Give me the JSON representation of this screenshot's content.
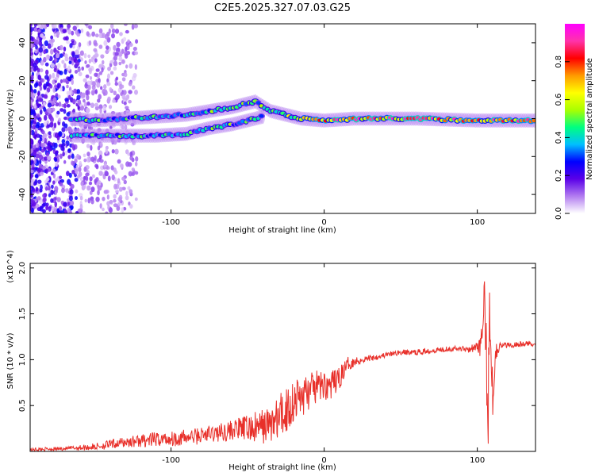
{
  "title": "C2E5.2025.327.07.03.G25",
  "colors": {
    "snr_line": "#e8302a",
    "axis": "#000000",
    "colorbar": [
      "#ffffff",
      "#b27cf0",
      "#5a00e8",
      "#0000ff",
      "#00bfff",
      "#00ff80",
      "#aaff00",
      "#ffff00",
      "#ff9900",
      "#ff0000",
      "#ff33aa",
      "#ff00ff"
    ]
  },
  "chart_data": [
    {
      "type": "heatmap",
      "title": "",
      "xlabel": "Height of straight line (km)",
      "ylabel": "Frequency (Hz)",
      "xlim": [
        -192,
        138
      ],
      "ylim": [
        -50,
        50
      ],
      "xticks": [
        -100,
        0,
        100
      ],
      "xtick_labels": [
        "-100",
        "0",
        "100"
      ],
      "yticks": [
        -40,
        -20,
        0,
        20,
        40
      ],
      "ytick_labels": [
        "-40",
        "-20",
        "0",
        "20",
        "40"
      ],
      "colorbar": {
        "label": "Normalized spectral amplitude",
        "range": [
          0,
          1
        ],
        "ticks": [
          0.0,
          0.2,
          0.4,
          0.6,
          0.8
        ],
        "tick_labels": [
          "0.0",
          "0.2",
          "0.4",
          "0.6",
          "0.8"
        ]
      },
      "ridges": [
        {
          "name": "upper",
          "points": [
            [
              -165,
              0
            ],
            [
              -150,
              -1
            ],
            [
              -130,
              0
            ],
            [
              -110,
              1
            ],
            [
              -90,
              2
            ],
            [
              -75,
              4
            ],
            [
              -60,
              6
            ],
            [
              -50,
              8
            ],
            [
              -45,
              9
            ],
            [
              -35,
              4
            ],
            [
              -25,
              2
            ],
            [
              -15,
              0
            ],
            [
              0,
              -1
            ],
            [
              20,
              0
            ],
            [
              60,
              0
            ],
            [
              100,
              -1
            ],
            [
              138,
              -1
            ]
          ]
        },
        {
          "name": "lower",
          "points": [
            [
              -165,
              -9
            ],
            [
              -150,
              -9
            ],
            [
              -130,
              -9
            ],
            [
              -110,
              -9
            ],
            [
              -90,
              -8
            ],
            [
              -75,
              -5
            ],
            [
              -60,
              -3
            ],
            [
              -50,
              -1
            ],
            [
              -40,
              1
            ]
          ]
        }
      ]
    },
    {
      "type": "line",
      "title": "",
      "xlabel": "Height of straight line (km)",
      "ylabel": "SNR (10 * v/v)",
      "y_multiplier": "(x10^4)",
      "xlim": [
        -192,
        138
      ],
      "ylim": [
        0,
        2.05
      ],
      "xticks": [
        -100,
        0,
        100
      ],
      "xtick_labels": [
        "-100",
        "0",
        "100"
      ],
      "yticks": [
        0.5,
        1.0,
        1.5,
        2.0
      ],
      "ytick_labels": [
        "0.5",
        "1.0",
        "1.5",
        "2.0"
      ],
      "series": [
        {
          "name": "SNR",
          "x": [
            -192,
            -170,
            -150,
            -130,
            -110,
            -90,
            -70,
            -55,
            -45,
            -35,
            -30,
            -25,
            -20,
            -15,
            -10,
            -5,
            0,
            5,
            10,
            15,
            20,
            25,
            30,
            40,
            50,
            60,
            70,
            80,
            90,
            95,
            100,
            103,
            105,
            107,
            108,
            110,
            112,
            115,
            120,
            130,
            138
          ],
          "values": [
            0.02,
            0.03,
            0.05,
            0.1,
            0.13,
            0.15,
            0.2,
            0.25,
            0.25,
            0.3,
            0.35,
            0.45,
            0.55,
            0.6,
            0.65,
            0.7,
            0.72,
            0.72,
            0.8,
            0.95,
            0.98,
            1.0,
            1.02,
            1.05,
            1.08,
            1.08,
            1.1,
            1.12,
            1.12,
            1.12,
            1.14,
            1.2,
            1.6,
            0.3,
            1.7,
            0.6,
            1.1,
            1.15,
            1.16,
            1.17,
            1.18
          ],
          "noise": [
            0.02,
            0.02,
            0.04,
            0.06,
            0.08,
            0.09,
            0.1,
            0.12,
            0.18,
            0.2,
            0.25,
            0.3,
            0.25,
            0.25,
            0.2,
            0.18,
            0.16,
            0.16,
            0.12,
            0.08,
            0.05,
            0.04,
            0.04,
            0.03,
            0.03,
            0.03,
            0.03,
            0.03,
            0.03,
            0.04,
            0.05,
            0.2,
            0.4,
            0.4,
            0.4,
            0.3,
            0.1,
            0.04,
            0.03,
            0.03,
            0.03
          ]
        }
      ]
    }
  ]
}
